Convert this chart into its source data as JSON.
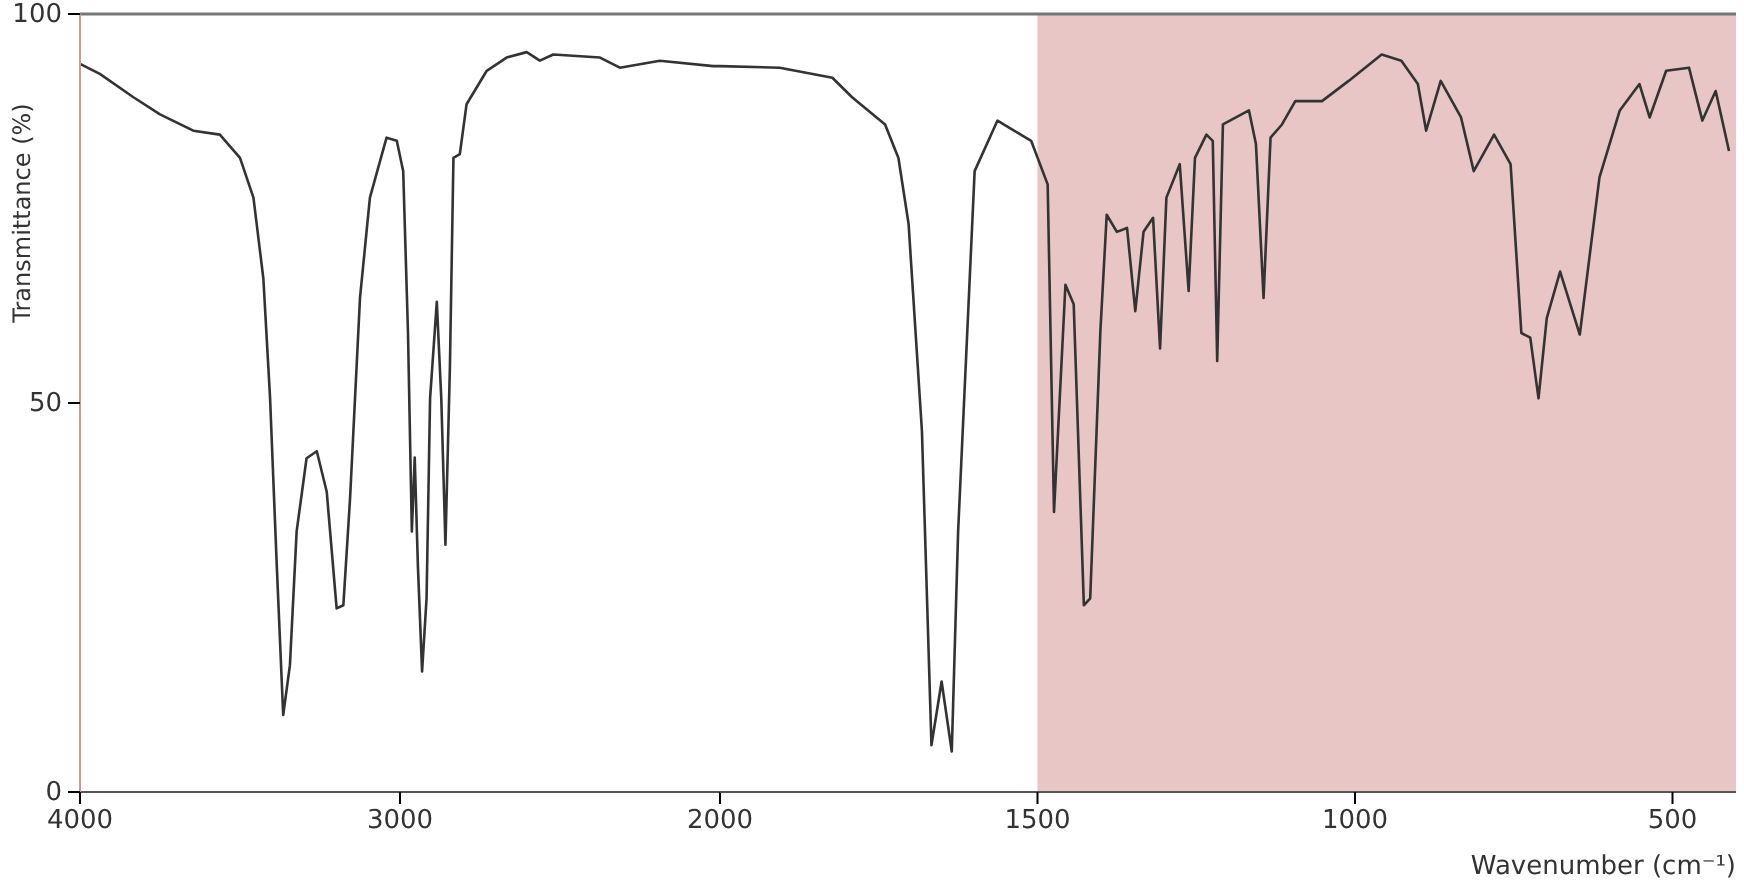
{
  "chart_data": [
    {
      "type": "line",
      "ylabel": "Transmittance (%)",
      "xlim": [
        4000,
        2000
      ],
      "xticks": [
        4000,
        3000,
        2000
      ],
      "ylim": [
        0,
        100
      ],
      "yticks": [
        0,
        50,
        100
      ],
      "marker": "none",
      "line_style": "solid",
      "series": [
        {
          "color": "#333333",
          "x": [
            4000,
            3938,
            3833,
            3750,
            3646,
            3563,
            3500,
            3458,
            3427,
            3406,
            3385,
            3365,
            3344,
            3323,
            3292,
            3260,
            3229,
            3198,
            3177,
            3156,
            3125,
            3094,
            3042,
            3010,
            2990,
            2975,
            2963,
            2954,
            2944,
            2931,
            2917,
            2906,
            2885,
            2871,
            2858,
            2844,
            2833,
            2813,
            2792,
            2729,
            2667,
            2604,
            2563,
            2521,
            2375,
            2313,
            2188,
            2021,
            2000
          ],
          "values": [
            93.6,
            92.3,
            89.3,
            87.1,
            85,
            84.5,
            81.5,
            76.4,
            66,
            50.6,
            29,
            9.9,
            16.3,
            33.5,
            42.9,
            43.8,
            38.6,
            23.6,
            24,
            37.8,
            63.5,
            76.4,
            84.1,
            83.7,
            79.8,
            59,
            33.5,
            43,
            29,
            15.5,
            24.9,
            50.6,
            63,
            50.6,
            31.8,
            54.7,
            81.5,
            82,
            88.4,
            92.7,
            94.4,
            95.1,
            94,
            94.8,
            94.4,
            93.1,
            94,
            93.3,
            93.3
          ]
        }
      ]
    },
    {
      "type": "line",
      "xlabel": "Wavenumber (cm⁻¹)",
      "xlim": [
        2000,
        400
      ],
      "xticks": [
        1500,
        1000,
        500
      ],
      "ylim": [
        0,
        100
      ],
      "tick_labels": "x",
      "marker": "none",
      "line_style": "solid",
      "bands": [
        {
          "axis": "x",
          "from": 1500,
          "to": 400,
          "color": "#e9c6c6"
        }
      ],
      "series": [
        {
          "color": "#333333",
          "x": [
            2000,
            1906,
            1823,
            1792,
            1740,
            1719,
            1703,
            1682,
            1667,
            1651,
            1635,
            1625,
            1599,
            1563,
            1510,
            1484,
            1474,
            1456,
            1443,
            1427,
            1417,
            1401,
            1391,
            1375,
            1359,
            1346,
            1333,
            1318,
            1307,
            1297,
            1276,
            1262,
            1252,
            1234,
            1224,
            1217,
            1208,
            1167,
            1156,
            1144,
            1133,
            1115,
            1094,
            1052,
            1010,
            958,
            927,
            901,
            888,
            865,
            833,
            813,
            781,
            755,
            738,
            724,
            711,
            698,
            677,
            646,
            615,
            583,
            552,
            536,
            510,
            474,
            453,
            432,
            411
          ],
          "values": [
            93.3,
            93.1,
            91.8,
            89.3,
            85.8,
            81.5,
            73,
            46.4,
            6,
            14.2,
            5.2,
            33.5,
            79.8,
            86.3,
            83.7,
            78.1,
            36,
            65.2,
            62.7,
            24,
            24.9,
            59.2,
            74.2,
            72,
            72.5,
            61.8,
            72,
            73.8,
            57,
            76.4,
            80.7,
            64.4,
            81.5,
            84.5,
            83.7,
            55.4,
            85.8,
            87.6,
            83.3,
            63.5,
            84.1,
            85.8,
            88.8,
            88.8,
            91.4,
            94.8,
            94,
            91,
            85,
            91.4,
            86.7,
            79.8,
            84.5,
            80.7,
            59,
            58.4,
            50.6,
            60.9,
            66.9,
            58.8,
            79,
            87.6,
            91,
            86.7,
            92.7,
            93.1,
            86.3,
            90.1,
            82.4
          ]
        }
      ]
    }
  ]
}
